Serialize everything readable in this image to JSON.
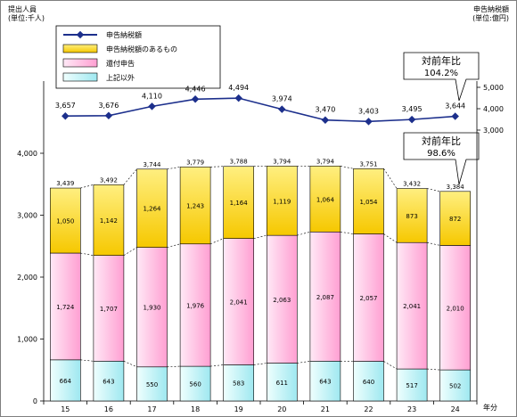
{
  "header": {
    "left_unit_line1": "提出人員",
    "left_unit_line2": "(単位:千人)",
    "right_unit_line1": "申告納税額",
    "right_unit_line2": "(単位:億円)"
  },
  "legend": [
    {
      "label": "申告納税額",
      "key": "tax"
    },
    {
      "label": "申告納税額のあるもの",
      "key": "yellow"
    },
    {
      "label": "還付申告",
      "key": "pink"
    },
    {
      "label": "上記以外",
      "key": "cyan"
    }
  ],
  "callouts": [
    {
      "line1": "対前年比",
      "line2": "104.2%"
    },
    {
      "line1": "対前年比",
      "line2": "98.6%"
    }
  ],
  "colors": {
    "yellow_top": "#ffef80",
    "yellow_bottom": "#f6c800",
    "pink_light": "#ffe9f6",
    "pink_dark": "#ff9fd2",
    "cyan_light": "#effffe",
    "cyan_dark": "#9fe8f0",
    "line": "#1c2f8c",
    "axis": "#000000"
  },
  "chart_data": {
    "type": "bar",
    "stacked": true,
    "x_unit": "年分",
    "categories": [
      "15",
      "16",
      "17",
      "18",
      "19",
      "20",
      "21",
      "22",
      "23",
      "24"
    ],
    "left_axis": {
      "min": 0,
      "max": 4000,
      "ticks": [
        "0",
        "1,000",
        "2,000",
        "3,000",
        "4,000"
      ]
    },
    "right_axis": {
      "ticks": [
        "3,000",
        "4,000",
        "5,000"
      ],
      "tick_values": [
        3000,
        4000,
        5000
      ]
    },
    "series": [
      {
        "name": "上記以外",
        "key": "cyan",
        "values": [
          664,
          643,
          550,
          560,
          583,
          611,
          643,
          640,
          517,
          502
        ],
        "labels": [
          "664",
          "643",
          "550",
          "560",
          "583",
          "611",
          "643",
          "640",
          "517",
          "502"
        ]
      },
      {
        "name": "還付申告",
        "key": "pink",
        "values": [
          1724,
          1707,
          1930,
          1976,
          2041,
          2063,
          2087,
          2057,
          2041,
          2010
        ],
        "labels": [
          "1,724",
          "1,707",
          "1,930",
          "1,976",
          "2,041",
          "2,063",
          "2,087",
          "2,057",
          "2,041",
          "2,010"
        ]
      },
      {
        "name": "申告納税額のあるもの",
        "key": "yellow",
        "values": [
          1050,
          1142,
          1264,
          1243,
          1164,
          1119,
          1064,
          1054,
          873,
          872
        ],
        "labels": [
          "1,050",
          "1,142",
          "1,264",
          "1,243",
          "1,164",
          "1,119",
          "1,064",
          "1,054",
          "873",
          "872"
        ]
      }
    ],
    "totals": {
      "values": [
        3439,
        3492,
        3744,
        3779,
        3788,
        3794,
        3794,
        3751,
        3432,
        3384
      ],
      "labels": [
        "3,439",
        "3,492",
        "3,744",
        "3,779",
        "3,788",
        "3,794",
        "3,794",
        "3,751",
        "3,432",
        "3,384"
      ]
    },
    "line": {
      "name": "申告納税額",
      "axis": "right",
      "values": [
        3657,
        3676,
        4110,
        4446,
        4494,
        3974,
        3470,
        3403,
        3495,
        3644
      ],
      "labels": [
        "3,657",
        "3,676",
        "4,110",
        "4,446",
        "4,494",
        "3,974",
        "3,470",
        "3,403",
        "3,495",
        "3,644"
      ]
    }
  }
}
